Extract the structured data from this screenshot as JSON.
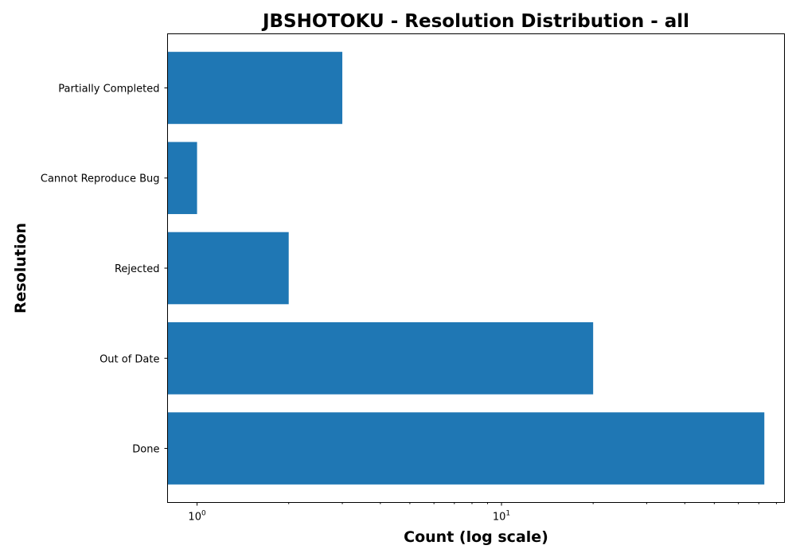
{
  "chart_data": {
    "type": "bar",
    "orientation": "horizontal",
    "title": "JBSHOTOKU - Resolution Distribution - all",
    "xlabel": "Count (log scale)",
    "ylabel": "Resolution",
    "x_scale": "log",
    "xlim": [
      0.8,
      85
    ],
    "x_ticks": [
      1,
      10
    ],
    "x_tick_labels": [
      {
        "base": "10",
        "exp": "0"
      },
      {
        "base": "10",
        "exp": "1"
      }
    ],
    "categories": [
      "Done",
      "Out of Date",
      "Rejected",
      "Cannot Reproduce Bug",
      "Partially Completed"
    ],
    "values": [
      73,
      20,
      2,
      1,
      3
    ],
    "bar_color": "#1f77b4",
    "grid": false,
    "legend": "none"
  }
}
